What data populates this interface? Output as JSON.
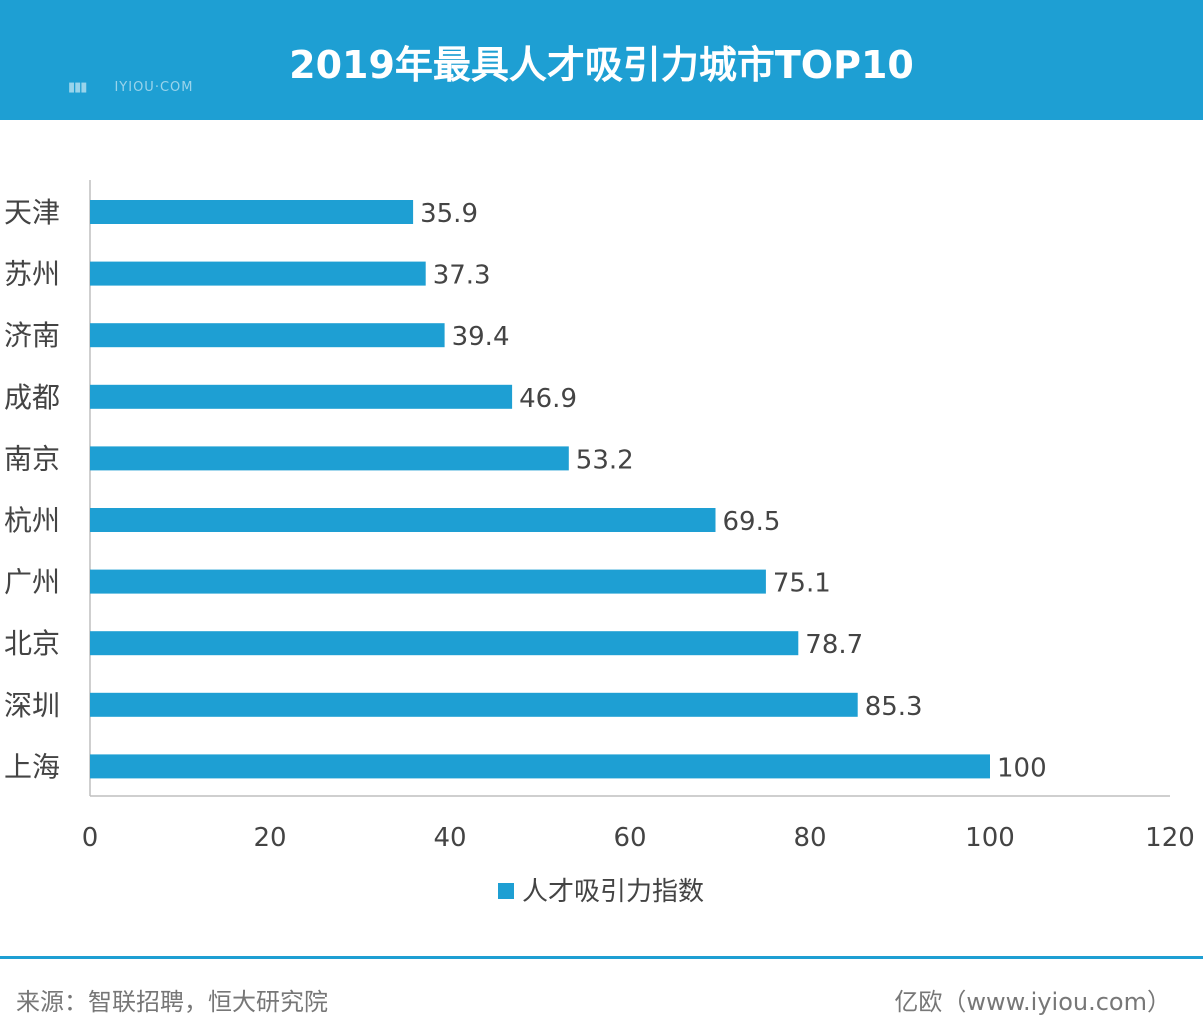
{
  "header": {
    "title": "2019年最具人才吸引力城市TOP10",
    "watermark_text": "IYIOU·COM",
    "background_color": "#1e9fd3"
  },
  "chart_data": {
    "type": "bar",
    "orientation": "horizontal",
    "title": "2019年最具人才吸引力城市TOP10",
    "categories": [
      "天津",
      "苏州",
      "济南",
      "成都",
      "南京",
      "杭州",
      "广州",
      "北京",
      "深圳",
      "上海"
    ],
    "series": [
      {
        "name": "人才吸引力指数",
        "values": [
          35.9,
          37.3,
          39.4,
          46.9,
          53.2,
          69.5,
          75.1,
          78.7,
          85.3,
          100
        ],
        "color": "#1e9fd3"
      }
    ],
    "data_labels": [
      "35.9",
      "37.3",
      "39.4",
      "46.9",
      "53.2",
      "69.5",
      "75.1",
      "78.7",
      "85.3",
      "100"
    ],
    "x_ticks": [
      "0",
      "20",
      "40",
      "60",
      "80",
      "100",
      "120"
    ],
    "xlim": [
      0,
      120
    ],
    "grid": false,
    "legend_position": "bottom"
  },
  "footer": {
    "source": "来源：智联招聘，恒大研究院",
    "brand": "亿欧（www.iyiou.com）"
  }
}
